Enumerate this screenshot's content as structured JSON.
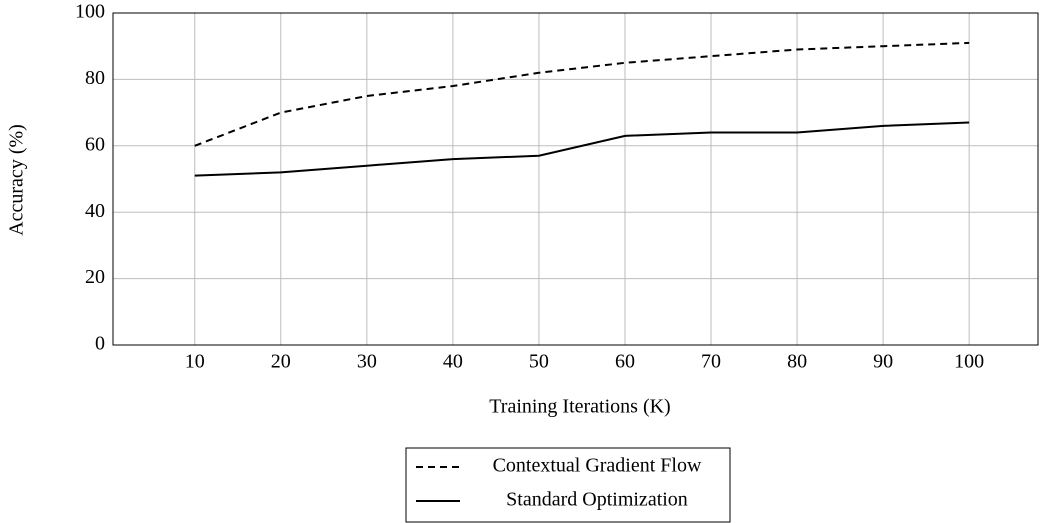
{
  "chart_data": {
    "type": "line",
    "x_label": "Training Iterations (K)",
    "y_label": "Accuracy (%)",
    "x": [
      10,
      20,
      30,
      40,
      50,
      60,
      70,
      80,
      90,
      100
    ],
    "series": [
      {
        "name": "Contextual Gradient Flow",
        "color": "#000000",
        "dash": true,
        "values": [
          60,
          70,
          75,
          78,
          82,
          85,
          87,
          89,
          90,
          91
        ]
      },
      {
        "name": "Standard Optimization",
        "color": "#000000",
        "dash": false,
        "values": [
          51,
          52,
          54,
          56,
          57,
          63,
          64,
          64,
          66,
          67
        ]
      }
    ],
    "xlim": [
      0.5,
      108
    ],
    "ylim": [
      0,
      100
    ],
    "xticks": [
      10,
      20,
      30,
      40,
      50,
      60,
      70,
      80,
      90,
      100
    ],
    "yticks": [
      0,
      20,
      40,
      60,
      80,
      100
    ],
    "grid": true,
    "legend": "bottom"
  }
}
